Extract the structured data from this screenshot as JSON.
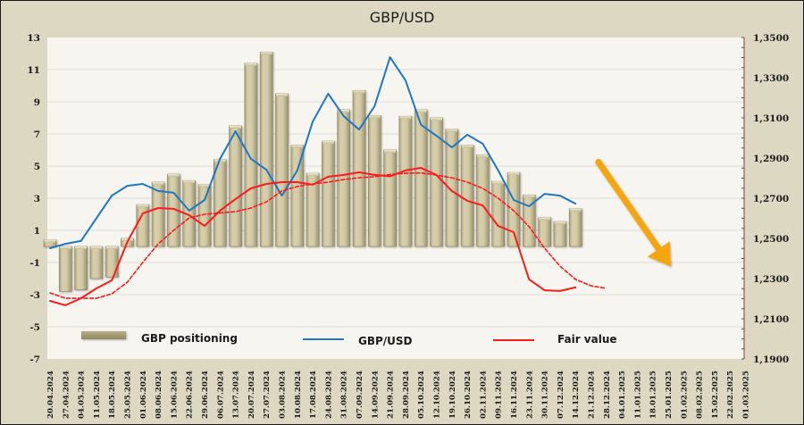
{
  "chart_data": {
    "type": "bar+line",
    "title": "GBP/USD",
    "xlabel": "",
    "ylabel_left": "",
    "ylabel_right": "",
    "grid": true,
    "legend_position": "bottom-inside",
    "left_axis": {
      "range": [
        -7,
        13
      ],
      "ticks": [
        "13",
        "11",
        "9",
        "7",
        "5",
        "3",
        "1",
        "-1",
        "-3",
        "-5",
        "-7"
      ],
      "tick_values": [
        13,
        11,
        9,
        7,
        5,
        3,
        1,
        -1,
        -3,
        -5,
        -7
      ]
    },
    "right_axis": {
      "range": [
        1.19,
        1.35
      ],
      "ticks": [
        "1,3500",
        "1,3300",
        "1,3100",
        "1,2900",
        "1,2700",
        "1,2500",
        "1,2300",
        "1,2100",
        "1,1900"
      ],
      "tick_values": [
        1.35,
        1.33,
        1.31,
        1.29,
        1.27,
        1.25,
        1.23,
        1.21,
        1.19
      ]
    },
    "categories": [
      "20.04.2024",
      "27.04.2024",
      "04.05.2024",
      "11.05.2024",
      "18.05.2024",
      "25.05.2024",
      "01.06.2024",
      "08.06.2024",
      "15.06.2024",
      "22.06.2024",
      "29.06.2024",
      "06.07.2024",
      "13.07.2024",
      "20.07.2024",
      "27.07.2024",
      "03.08.2024",
      "10.08.2024",
      "17.08.2024",
      "24.08.2024",
      "31.08.2024",
      "07.09.2024",
      "14.09.2024",
      "21.09.2024",
      "28.09.2024",
      "05.10.2024",
      "12.10.2024",
      "19.10.2024",
      "26.10.2024",
      "02.11.2024",
      "09.11.2024",
      "16.11.2024",
      "23.11.2024",
      "30.11.2024",
      "07.12.2024",
      "14.12.2024",
      "21.12.2024",
      "28.12.2024",
      "04.01.2025",
      "11.01.2025",
      "18.01.2025",
      "25.01.2025",
      "01.02.2025",
      "08.02.2025",
      "15.02.2025",
      "22.02.2025",
      "01.03.2025"
    ],
    "series": [
      {
        "name": "GBP positioning",
        "type": "bar",
        "axis": "left",
        "color": "#cfc7a0",
        "values": [
          0.4,
          -2.8,
          -2.7,
          -2.0,
          -1.9,
          0.5,
          2.6,
          4.0,
          4.5,
          4.1,
          3.85,
          5.4,
          7.5,
          11.4,
          12.1,
          9.5,
          6.3,
          4.55,
          6.55,
          8.5,
          9.7,
          8.15,
          6.0,
          8.1,
          8.5,
          8.0,
          7.3,
          6.3,
          5.7,
          4.05,
          4.6,
          3.2,
          1.8,
          1.55,
          2.35
        ]
      },
      {
        "name": "GBP/USD",
        "type": "line",
        "axis": "right",
        "color": "#1f77c4",
        "values": [
          1.2451,
          1.2473,
          1.2487,
          1.26,
          1.2713,
          1.2762,
          1.2771,
          1.2736,
          1.2727,
          1.2638,
          1.2691,
          1.2896,
          1.3033,
          1.2896,
          1.2842,
          1.2713,
          1.2838,
          1.3082,
          1.322,
          1.3109,
          1.3042,
          1.3158,
          1.3402,
          1.3287,
          1.3066,
          1.3011,
          1.2953,
          1.3016,
          1.2971,
          1.2838,
          1.2691,
          1.266,
          1.2722,
          1.2713,
          1.2673
        ]
      },
      {
        "name": "Fair value",
        "type": "line",
        "axis": "right",
        "color": "#ff1a1a",
        "values": [
          1.2189,
          1.2167,
          1.2202,
          1.2251,
          1.2291,
          1.2482,
          1.2624,
          1.2651,
          1.2647,
          1.2616,
          1.2562,
          1.2638,
          1.2696,
          1.2749,
          1.2771,
          1.278,
          1.278,
          1.2767,
          1.2807,
          1.2816,
          1.2829,
          1.2816,
          1.2809,
          1.2838,
          1.2851,
          1.2816,
          1.2736,
          1.2687,
          1.2664,
          1.2562,
          1.2531,
          1.2296,
          1.2242,
          1.2238,
          1.2256
        ]
      },
      {
        "name": "Fair value (smoothed)",
        "type": "line",
        "style": "dashed",
        "axis": "right",
        "color": "#ff1a1a",
        "in_legend": false,
        "values": [
          1.2229,
          1.2202,
          1.2202,
          1.2202,
          1.2224,
          1.2282,
          1.238,
          1.2473,
          1.254,
          1.2602,
          1.262,
          1.2627,
          1.2633,
          1.2651,
          1.2682,
          1.2736,
          1.2758,
          1.2771,
          1.278,
          1.2793,
          1.2802,
          1.2807,
          1.2818,
          1.2824,
          1.2826,
          1.2815,
          1.2802,
          1.278,
          1.2749,
          1.27,
          1.2638,
          1.2558,
          1.2451,
          1.2362,
          1.2296,
          1.2264,
          1.2251
        ]
      }
    ],
    "annotations": [
      {
        "type": "arrow",
        "description": "orange downward arrow indicating expected decline",
        "color": "#f5a50a",
        "from_category": "28.12.2024",
        "to_category": "25.01.2025",
        "from_value": 1.288,
        "to_value": 1.236
      }
    ]
  },
  "legend": [
    {
      "label": "GBP positioning",
      "symbol": "bar",
      "color": "#a39d72"
    },
    {
      "label": "GBP/USD",
      "symbol": "line",
      "color": "#1f77c4"
    },
    {
      "label": "Fair value",
      "symbol": "line",
      "color": "#ff1a1a"
    }
  ],
  "colors": {
    "frame_bg": "#dcd8c2",
    "plot_bg": "#f7f5f0",
    "gridline": "#dddbd3",
    "right_axis_line": "#8b3a3a"
  }
}
